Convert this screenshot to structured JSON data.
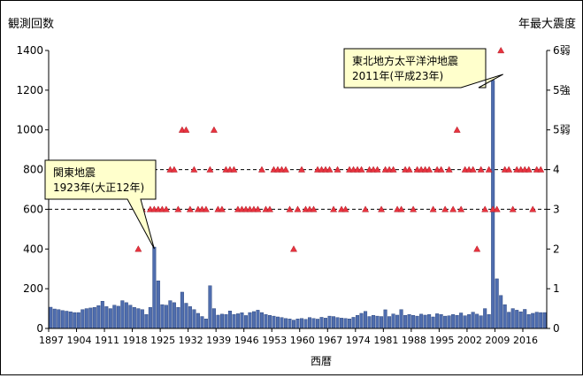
{
  "chart_data": {
    "type": "bar+scatter",
    "ylabel": "観測回数",
    "y2label": "年最大震度",
    "xlabel": "西暦",
    "ylim": [
      0,
      1400
    ],
    "yticks": [
      "0",
      "200",
      "400",
      "600",
      "800",
      "1000",
      "1200",
      "1400"
    ],
    "y2ticks": [
      "0",
      "1",
      "2",
      "3",
      "4",
      "5弱",
      "5強",
      "6弱"
    ],
    "y2levels": [
      0,
      1,
      2,
      3,
      4,
      5,
      6,
      7
    ],
    "y2lim": [
      0,
      7
    ],
    "grid": "horizontal dashed at 600 and 800",
    "xtick_labels": [
      "1897",
      "1904",
      "1911",
      "1918",
      "1925",
      "1932",
      "1939",
      "1946",
      "1953",
      "1960",
      "1967",
      "1974",
      "1981",
      "1988",
      "1995",
      "2002",
      "2009",
      "2016"
    ],
    "xtick_interval": 7,
    "years_start": 1897,
    "years_end": 2021,
    "bar_color": "#4F6DAE",
    "marker_color": "#E8333F",
    "counts": [
      107,
      98,
      95,
      90,
      87,
      84,
      80,
      80,
      95,
      100,
      103,
      106,
      115,
      137,
      110,
      100,
      117,
      112,
      140,
      130,
      117,
      106,
      100,
      95,
      70,
      106,
      410,
      240,
      120,
      117,
      140,
      130,
      106,
      183,
      127,
      110,
      95,
      76,
      60,
      48,
      215,
      100,
      67,
      72,
      70,
      88,
      70,
      74,
      79,
      65,
      80,
      85,
      92,
      80,
      70,
      66,
      62,
      58,
      55,
      50,
      48,
      42,
      48,
      50,
      46,
      55,
      50,
      47,
      56,
      52,
      62,
      60,
      55,
      52,
      50,
      48,
      56,
      66,
      76,
      86,
      60,
      66,
      62,
      60,
      94,
      60,
      73,
      67,
      95,
      66,
      70,
      66,
      62,
      72,
      67,
      70,
      58,
      74,
      70,
      62,
      64,
      70,
      66,
      78,
      64,
      70,
      82,
      72,
      64,
      100,
      70,
      1250,
      250,
      166,
      120,
      82,
      100,
      92,
      84,
      96,
      70,
      76,
      82,
      80,
      80
    ],
    "max_intensity_years": [
      [
        1919,
        2
      ],
      [
        1920,
        3
      ],
      [
        1922,
        3
      ],
      [
        1923,
        3
      ],
      [
        1924,
        3
      ],
      [
        1925,
        3
      ],
      [
        1926,
        3
      ],
      [
        1927,
        4
      ],
      [
        1928,
        4
      ],
      [
        1929,
        3
      ],
      [
        1930,
        5
      ],
      [
        1931,
        5
      ],
      [
        1932,
        3
      ],
      [
        1933,
        4
      ],
      [
        1934,
        3
      ],
      [
        1935,
        3
      ],
      [
        1936,
        3
      ],
      [
        1937,
        4
      ],
      [
        1938,
        5
      ],
      [
        1939,
        3
      ],
      [
        1940,
        3
      ],
      [
        1941,
        4
      ],
      [
        1942,
        4
      ],
      [
        1943,
        4
      ],
      [
        1944,
        3
      ],
      [
        1945,
        3
      ],
      [
        1946,
        3
      ],
      [
        1947,
        3
      ],
      [
        1948,
        3
      ],
      [
        1949,
        3
      ],
      [
        1950,
        4
      ],
      [
        1951,
        3
      ],
      [
        1952,
        3
      ],
      [
        1953,
        4
      ],
      [
        1954,
        4
      ],
      [
        1955,
        4
      ],
      [
        1956,
        4
      ],
      [
        1957,
        3
      ],
      [
        1958,
        2
      ],
      [
        1959,
        3
      ],
      [
        1960,
        4
      ],
      [
        1961,
        3
      ],
      [
        1962,
        3
      ],
      [
        1963,
        3
      ],
      [
        1964,
        4
      ],
      [
        1965,
        4
      ],
      [
        1966,
        4
      ],
      [
        1967,
        4
      ],
      [
        1968,
        3
      ],
      [
        1969,
        4
      ],
      [
        1970,
        3
      ],
      [
        1971,
        3
      ],
      [
        1972,
        4
      ],
      [
        1973,
        4
      ],
      [
        1974,
        4
      ],
      [
        1975,
        4
      ],
      [
        1976,
        3
      ],
      [
        1977,
        4
      ],
      [
        1978,
        4
      ],
      [
        1979,
        4
      ],
      [
        1980,
        3
      ],
      [
        1981,
        4
      ],
      [
        1982,
        4
      ],
      [
        1983,
        4
      ],
      [
        1984,
        3
      ],
      [
        1985,
        3
      ],
      [
        1986,
        4
      ],
      [
        1987,
        4
      ],
      [
        1988,
        3
      ],
      [
        1989,
        4
      ],
      [
        1990,
        4
      ],
      [
        1991,
        4
      ],
      [
        1992,
        4
      ],
      [
        1993,
        3
      ],
      [
        1994,
        4
      ],
      [
        1995,
        4
      ],
      [
        1996,
        3
      ],
      [
        1997,
        4
      ],
      [
        1998,
        3
      ],
      [
        1999,
        5
      ],
      [
        2000,
        3
      ],
      [
        2001,
        4
      ],
      [
        2002,
        4
      ],
      [
        2003,
        4
      ],
      [
        2004,
        2
      ],
      [
        2005,
        4
      ],
      [
        2006,
        3
      ],
      [
        2007,
        4
      ],
      [
        2008,
        3
      ],
      [
        2009,
        3
      ],
      [
        2010,
        7
      ],
      [
        2011,
        4
      ],
      [
        2012,
        4
      ],
      [
        2013,
        3
      ],
      [
        2014,
        4
      ],
      [
        2015,
        4
      ],
      [
        2016,
        4
      ],
      [
        2017,
        4
      ],
      [
        2018,
        3
      ],
      [
        2019,
        4
      ],
      [
        2020,
        4
      ]
    ],
    "annotations": [
      {
        "lines": [
          "関東地震",
          "1923年(大正12年)"
        ],
        "year": 1923
      },
      {
        "lines": [
          "東北地方太平洋沖地震",
          "2011年(平成23年)"
        ],
        "year": 2011
      }
    ],
    "callout_fill": "#FFFFCC"
  }
}
